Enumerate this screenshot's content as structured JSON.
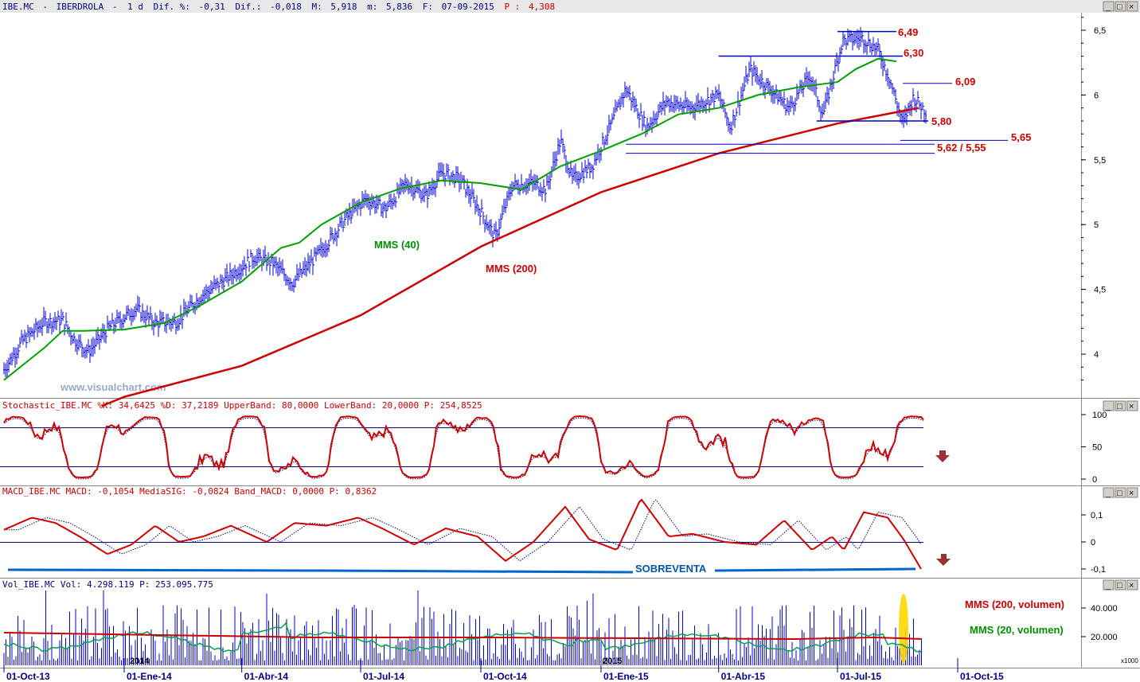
{
  "header": {
    "symbol": "IBE.MC",
    "name": "IBERDROLA",
    "period": "1 d",
    "difpct_label": "Dif. %:",
    "difpct_value": "-0,31",
    "dif_label": "Dif.:",
    "dif_value": "-0,018",
    "max_label": "M:",
    "max_value": "5,918",
    "min_label": "m:",
    "min_value": "5,836",
    "date_label": "F:",
    "date_value": "07-09-2015",
    "price_label": "P :",
    "price_value": "4,308"
  },
  "watermark": "www.visualchart.com",
  "panels": {
    "stochastic": {
      "title": "Stochastic_IBE.MC %K: 34,6425 %D: 37,2189 UpperBand: 80,0000 LowerBand: 20,0000 P: 254,8525"
    },
    "macd": {
      "title": "MACD_IBE.MC MACD: -0,1054 MediaSIG: -0,0824 Band_MACD: 0,0000 P: 0,8362"
    },
    "volume": {
      "title": "Vol_IBE.MC Vol: 4.298.119 P: 253.095.775",
      "scale": "x1000"
    }
  },
  "window_buttons": [
    "_",
    "□",
    "×"
  ],
  "chart_data": {
    "type": "line",
    "x_ticks": [
      "01-Oct-13",
      "01-Ene-14",
      "01-Abr-14",
      "01-Jul-14",
      "01-Oct-14",
      "01-Ene-15",
      "01-Abr-15",
      "01-Jul-15",
      "01-Oct-15"
    ],
    "year_labels": [
      "2014",
      "2015"
    ],
    "price_axis": {
      "ticks": [
        "6,5",
        "6",
        "5,5",
        "5",
        "4,5",
        "4"
      ],
      "ylim": [
        3.72,
        6.62
      ]
    },
    "stoch_axis": {
      "ticks": [
        "100",
        "50",
        "0"
      ],
      "upper_band": 80,
      "lower_band": 20
    },
    "macd_axis": {
      "ticks": [
        "0,1",
        "0",
        "-0,1"
      ]
    },
    "vol_axis": {
      "ticks": [
        "40.000",
        "20.000"
      ]
    },
    "series": [
      {
        "name": "MMS (40)",
        "color": "#00a000",
        "points": [
          [
            "01-Oct-13",
            3.8
          ],
          [
            "01-Nov-13",
            4.05
          ],
          [
            "15-Nov-13",
            4.18
          ],
          [
            "01-Dic-13",
            4.18
          ],
          [
            "01-Ene-14",
            4.19
          ],
          [
            "01-Feb-14",
            4.24
          ],
          [
            "01-Mar-14",
            4.38
          ],
          [
            "01-Abr-14",
            4.56
          ],
          [
            "01-May-14",
            4.82
          ],
          [
            "15-May-14",
            4.86
          ],
          [
            "01-Jun-14",
            5.0
          ],
          [
            "01-Jul-14",
            5.17
          ],
          [
            "01-Ago-14",
            5.28
          ],
          [
            "01-Sep-14",
            5.34
          ],
          [
            "01-Oct-14",
            5.32
          ],
          [
            "01-Nov-14",
            5.27
          ],
          [
            "01-Dic-14",
            5.45
          ],
          [
            "01-Ene-15",
            5.57
          ],
          [
            "01-Feb-15",
            5.7
          ],
          [
            "01-Mar-15",
            5.85
          ],
          [
            "01-Abr-15",
            5.9
          ],
          [
            "01-May-15",
            6.0
          ],
          [
            "01-Jun-15",
            6.06
          ],
          [
            "01-Jul-15",
            6.1
          ],
          [
            "15-Jul-15",
            6.2
          ],
          [
            "01-Ago-15",
            6.28
          ],
          [
            "15-Ago-15",
            6.26
          ]
        ]
      },
      {
        "name": "MMS (200)",
        "color": "#cc0000",
        "points": [
          [
            "15-Dic-13",
            3.6
          ],
          [
            "01-Ene-14",
            3.67
          ],
          [
            "01-Abr-14",
            3.91
          ],
          [
            "01-Jul-14",
            4.3
          ],
          [
            "01-Oct-14",
            4.83
          ],
          [
            "01-Ene-15",
            5.25
          ],
          [
            "01-Abr-15",
            5.55
          ],
          [
            "01-Jul-15",
            5.78
          ],
          [
            "01-Sep-15",
            5.9
          ]
        ]
      }
    ],
    "annotations": [
      {
        "label": "6,49",
        "value": 6.49
      },
      {
        "label": "6,30",
        "value": 6.3
      },
      {
        "label": "6,09",
        "value": 6.09
      },
      {
        "label": "5,80",
        "value": 5.8
      },
      {
        "label": "5,65",
        "value": 5.65
      },
      {
        "label": "5,62 / 5,55",
        "values": [
          5.62,
          5.55
        ]
      }
    ],
    "legend_labels": {
      "mms40": "MMS (40)",
      "mms200": "MMS (200)",
      "sobreventa": "SOBREVENTA",
      "vol_mms200": "MMS (200, volumen)",
      "vol_mms20": "MMS (20, volumen)"
    },
    "colors": {
      "price": "#0000cc",
      "mms40": "#00a000",
      "mms200": "#cc0000",
      "band": "#000080",
      "sobreventa": "#0066cc",
      "highlight": "#ffd700",
      "arrow": "#993333"
    }
  }
}
